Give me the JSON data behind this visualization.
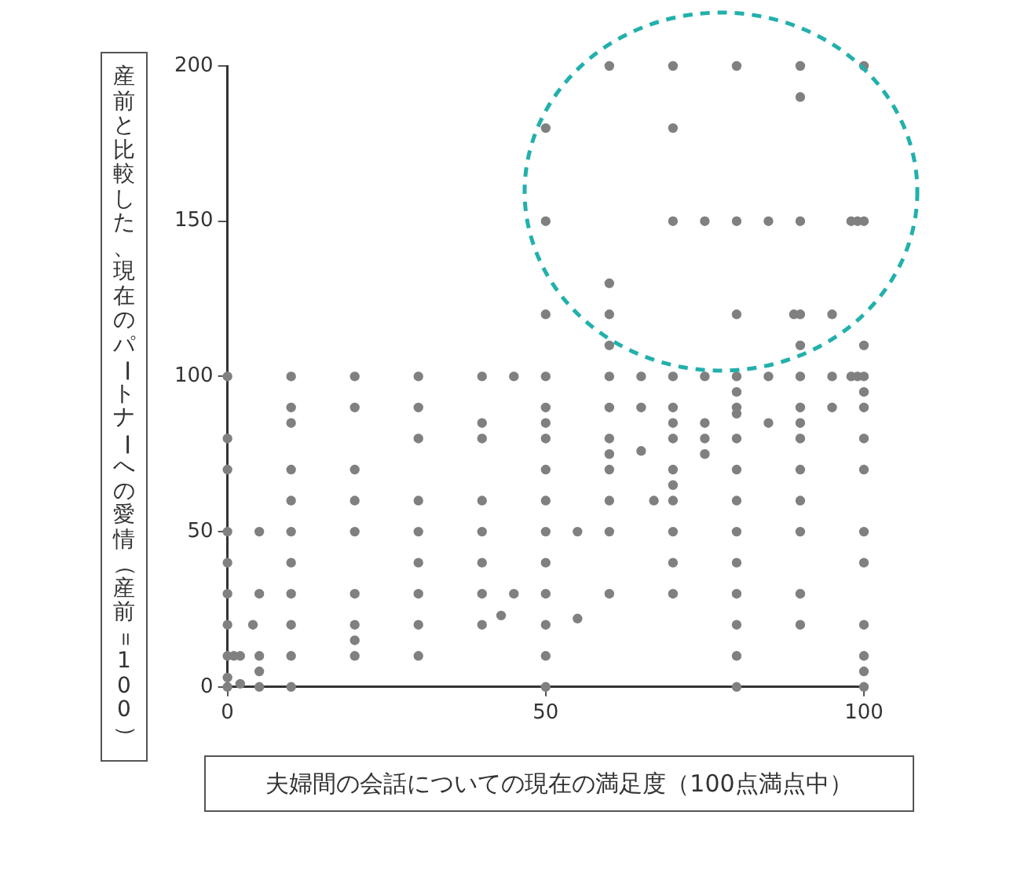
{
  "chart_data": {
    "type": "scatter",
    "xlabel": "夫婦間の会話についての現在の満足度（100点満点中）",
    "ylabel": "産前と比較した、現在のパートナーへの愛情（産前＝100）",
    "xlim": [
      0,
      100
    ],
    "xticks": [
      0,
      50,
      100
    ],
    "ylim": [
      0,
      200
    ],
    "yticks": [
      0,
      50,
      100,
      150,
      200
    ],
    "grid": false,
    "legend": false,
    "marker": "circle",
    "series": [
      {
        "color": "#808080",
        "x": [
          0,
          0,
          0,
          0,
          0,
          0,
          0,
          0,
          0,
          0,
          1,
          2,
          2,
          4,
          5,
          5,
          5,
          5,
          5,
          10,
          10,
          10,
          10,
          10,
          10,
          10,
          10,
          10,
          10,
          10,
          20,
          20,
          20,
          20,
          20,
          20,
          20,
          20,
          20,
          30,
          30,
          30,
          30,
          30,
          30,
          30,
          30,
          30,
          40,
          40,
          40,
          40,
          40,
          40,
          40,
          40,
          43,
          45,
          45,
          50,
          50,
          50,
          50,
          50,
          50,
          50,
          50,
          50,
          50,
          50,
          50,
          50,
          50,
          50,
          55,
          55,
          60,
          60,
          60,
          60,
          60,
          60,
          60,
          60,
          60,
          60,
          60,
          60,
          65,
          65,
          65,
          67,
          70,
          70,
          70,
          70,
          70,
          70,
          70,
          70,
          70,
          70,
          70,
          70,
          70,
          75,
          75,
          75,
          75,
          75,
          80,
          80,
          80,
          80,
          80,
          80,
          80,
          80,
          80,
          80,
          80,
          80,
          80,
          80,
          80,
          80,
          85,
          85,
          85,
          89,
          90,
          90,
          90,
          90,
          90,
          90,
          90,
          90,
          90,
          90,
          90,
          90,
          90,
          90,
          95,
          95,
          95,
          98,
          99,
          98,
          99,
          100,
          100,
          100,
          100,
          100,
          100,
          100,
          100,
          100,
          100,
          100,
          100,
          100,
          100
        ],
        "values": [
          100,
          80,
          70,
          50,
          40,
          30,
          20,
          10,
          3,
          0,
          10,
          10,
          1,
          20,
          50,
          30,
          10,
          5,
          0,
          100,
          90,
          85,
          70,
          60,
          50,
          40,
          30,
          20,
          10,
          0,
          100,
          90,
          70,
          60,
          50,
          30,
          20,
          15,
          10,
          100,
          90,
          80,
          60,
          50,
          40,
          30,
          20,
          10,
          100,
          85,
          80,
          60,
          50,
          40,
          30,
          20,
          23,
          100,
          30,
          180,
          150,
          120,
          100,
          90,
          85,
          80,
          70,
          60,
          50,
          40,
          30,
          20,
          10,
          0,
          50,
          22,
          200,
          130,
          120,
          110,
          100,
          90,
          80,
          75,
          70,
          60,
          50,
          30,
          100,
          90,
          76,
          60,
          200,
          180,
          150,
          100,
          90,
          85,
          80,
          70,
          65,
          60,
          50,
          40,
          30,
          150,
          100,
          85,
          80,
          75,
          200,
          150,
          120,
          100,
          95,
          90,
          88,
          80,
          70,
          60,
          50,
          40,
          30,
          20,
          10,
          0,
          150,
          100,
          85,
          120,
          200,
          190,
          150,
          120,
          110,
          100,
          90,
          85,
          80,
          70,
          60,
          50,
          30,
          20,
          120,
          100,
          90,
          150,
          150,
          100,
          100,
          200,
          150,
          110,
          100,
          95,
          90,
          80,
          70,
          50,
          40,
          20,
          10,
          5,
          0
        ]
      }
    ]
  }
}
